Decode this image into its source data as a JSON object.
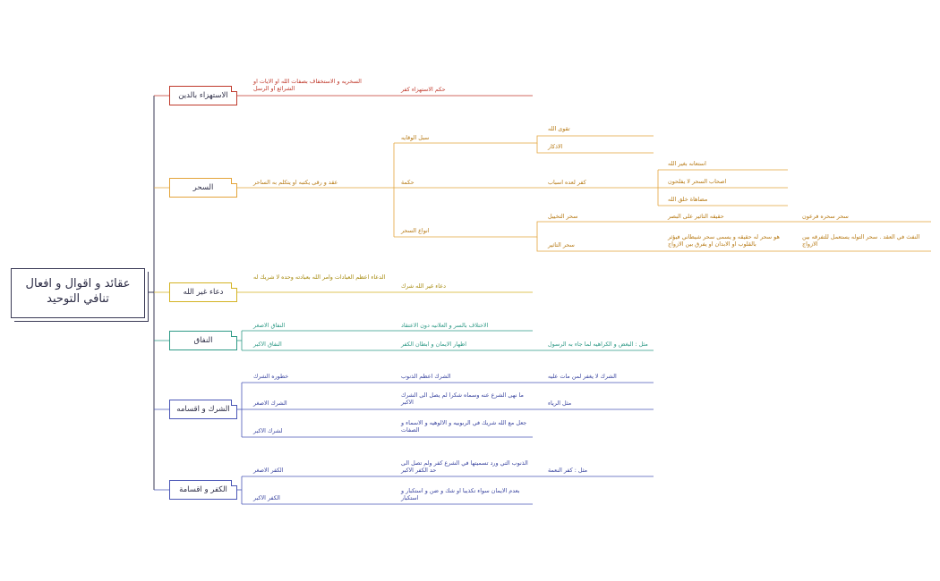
{
  "root": {
    "title": "عقائد و اقوال و افعال تنافي التوحيد"
  },
  "colors": {
    "istihza": "#c0392b",
    "sihr": "#e3a43a",
    "dua": "#d4b323",
    "nifaq": "#2e9a86",
    "shirk": "#4a56b6",
    "kufr": "#4a56b6",
    "root_border": "#3a3a56"
  },
  "categories": {
    "istihza": {
      "label": "الاستهزاء بالدين"
    },
    "sihr": {
      "label": "السحر"
    },
    "dua": {
      "label": "دعاء غير الله"
    },
    "nifaq": {
      "label": "النفاق"
    },
    "shirk": {
      "label": "الشرك و اقسامه"
    },
    "kufr": {
      "label": "الكفر و اقسامة"
    }
  },
  "istihza": {
    "def": "السخريه و الاستخفاف بصفات الله او الايات او الشرائع او الرسل",
    "ruling": "حكم الاستهزاء كفر"
  },
  "sihr": {
    "def": "عقد و رقى يكتبه او يتكلم به الساحر",
    "prevention": "سبل الوقايه",
    "taqwa": "تقوى الله",
    "adhkar": "الاذكار",
    "hukm": "حكمة",
    "kufr_reasons": "كفر لعده اسباب",
    "reason1": "استعانه بغير الله",
    "reason2": "اصحاب السحر لا يفلحون",
    "reason3": "مضاهاة خلق الله",
    "types": "انواع السحر",
    "takhyil": "سحر التخييل",
    "takhyil_def": "حقيقه التاثير على البصر",
    "takhyil_ex": "سحر سحره فرعون",
    "tathir": "سحر التاثير",
    "tathir_def": "هو سحر له حقيقه و يسمى سحر شيطاني فيؤثر بالقلوب او الابدان او يفرق بين الازواج",
    "tathir_ex": "النفث في العقد . سحر التوله يستعمل للتفرقه بين الازواج"
  },
  "dua": {
    "def": "الدعاء اعظم العبادات وامر الله بعبادته وحده لا شريك له",
    "ruling": "دعاء غير الله شرك"
  },
  "nifaq": {
    "minor": "النفاق الاصغر",
    "minor_def": "الاختلاف بالسر و العلانيه دون الاعتقاد",
    "major": "النفاق الاكبر",
    "major_def": "اظهار الايمان و ابطان الكفر",
    "major_ex": "مثل : البغض و الكراهيه لما جاء به الرسول"
  },
  "shirk": {
    "danger": "خطوره الشرك",
    "danger_def": "الشرك اعظم الذنوب",
    "danger_ex": "الشرك لا يغفر لمن مات عليه",
    "minor": "الشرك الاصغر",
    "minor_def": "ما نهى الشرع عنه وسماه شكرا لم يصل الى الشرك الاكبر",
    "minor_ex": "مثل الرياء",
    "major": "لشرك الاكبر",
    "major_def": "جعل مع الله شريك في الربوبيه و الالوهيه و الاسماء و الصفات"
  },
  "kufr": {
    "minor": "الكفر الاصغر",
    "minor_def": "الذنوب التي ورد تسميتها في الشرع كفر ولم تصل الى حد الكفر الاكبر",
    "minor_ex": "مثل : كفر النعمة",
    "major": "الكفر الاكبر",
    "major_def": "بعدم الايمان سواء تكذيبا او شك و ضن و استكبار و استكبار"
  }
}
